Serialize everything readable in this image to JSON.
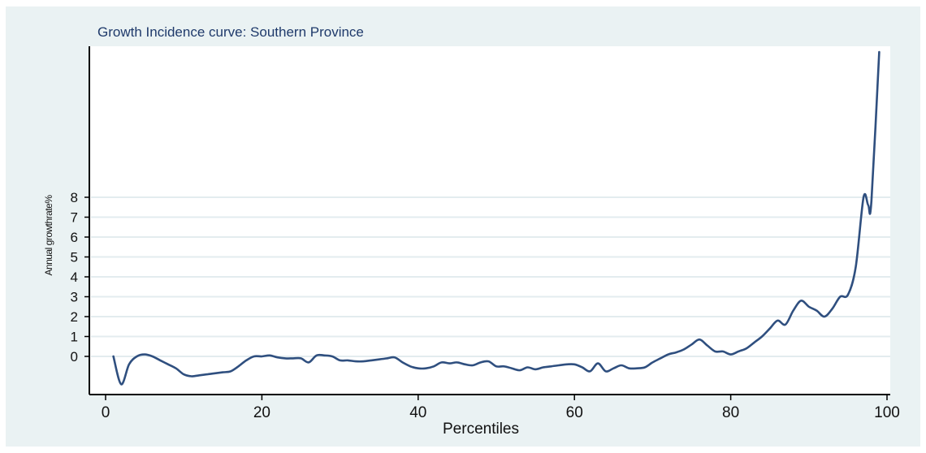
{
  "chart_data": {
    "type": "line",
    "title": "Growth Incidence curve: Southern Province",
    "xlabel": "Percentiles",
    "ylabel": "Annual growthrate%",
    "xlim": [
      0,
      100
    ],
    "ylim": [
      -2,
      15
    ],
    "x_ticks": [
      0,
      20,
      40,
      60,
      80,
      100
    ],
    "y_ticks": [
      0,
      1,
      2,
      3,
      4,
      5,
      6,
      7,
      8
    ],
    "grid": "horizontal",
    "colors": {
      "line": "#2f4f7f",
      "grid": "#e3ecef",
      "axis": "#000000"
    },
    "series": [
      {
        "x": [
          1,
          2,
          3,
          4,
          5,
          6,
          7,
          8,
          9,
          10,
          11,
          12,
          13,
          14,
          15,
          16,
          17,
          18,
          19,
          20,
          21,
          22,
          23,
          24,
          25,
          26,
          27,
          28,
          29,
          30,
          31,
          32,
          33,
          34,
          35,
          36,
          37,
          38,
          39,
          40,
          41,
          42,
          43,
          44,
          45,
          46,
          47,
          48,
          49,
          50,
          51,
          52,
          53,
          54,
          55,
          56,
          57,
          58,
          59,
          60,
          61,
          62,
          63,
          64,
          65,
          66,
          67,
          68,
          69,
          70,
          71,
          72,
          73,
          74,
          75,
          76,
          77,
          78,
          79,
          80,
          81,
          82,
          83,
          84,
          85,
          86,
          87,
          88,
          89,
          90,
          91,
          92,
          93,
          94,
          95,
          96,
          97,
          97.6,
          98,
          99
        ],
        "y": [
          0,
          -1.4,
          -0.4,
          0,
          0.1,
          0,
          -0.2,
          -0.4,
          -0.6,
          -0.9,
          -1.0,
          -0.95,
          -0.9,
          -0.85,
          -0.8,
          -0.75,
          -0.5,
          -0.2,
          0,
          0,
          0.05,
          -0.05,
          -0.1,
          -0.1,
          -0.1,
          -0.3,
          0.05,
          0.05,
          0,
          -0.2,
          -0.2,
          -0.25,
          -0.25,
          -0.2,
          -0.15,
          -0.1,
          -0.05,
          -0.3,
          -0.5,
          -0.6,
          -0.6,
          -0.5,
          -0.3,
          -0.35,
          -0.3,
          -0.4,
          -0.45,
          -0.3,
          -0.25,
          -0.5,
          -0.5,
          -0.6,
          -0.7,
          -0.55,
          -0.65,
          -0.55,
          -0.5,
          -0.45,
          -0.4,
          -0.4,
          -0.55,
          -0.75,
          -0.35,
          -0.75,
          -0.6,
          -0.45,
          -0.6,
          -0.6,
          -0.55,
          -0.3,
          -0.1,
          0.1,
          0.2,
          0.35,
          0.6,
          0.85,
          0.55,
          0.25,
          0.25,
          0.1,
          0.25,
          0.4,
          0.7,
          1.0,
          1.4,
          1.8,
          1.6,
          2.3,
          2.8,
          2.5,
          2.3,
          2.0,
          2.4,
          3.0,
          3.1,
          4.5,
          8.0,
          7.6,
          7.8,
          15.3
        ]
      }
    ]
  }
}
